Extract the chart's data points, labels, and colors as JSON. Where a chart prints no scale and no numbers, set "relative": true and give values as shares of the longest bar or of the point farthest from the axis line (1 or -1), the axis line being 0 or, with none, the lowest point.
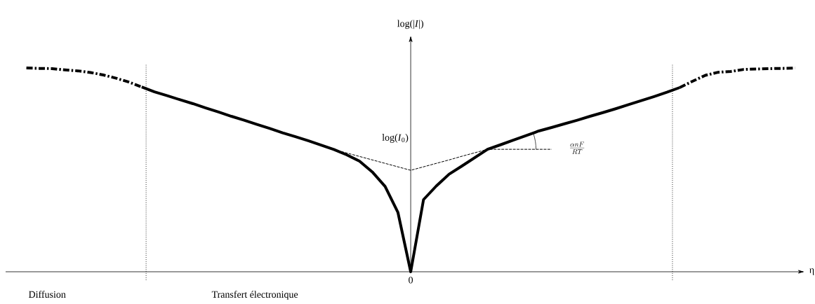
{
  "chart_data": {
    "type": "line",
    "relative": true,
    "ylabel": "log(|*I*|)",
    "xlabel": "η",
    "categories": [
      null,
      null,
      null,
      null,
      null,
      null,
      null,
      null,
      null,
      null,
      null,
      null,
      null,
      null,
      null,
      null,
      null,
      null,
      null,
      null,
      null,
      null,
      null,
      null,
      null,
      null,
      null,
      null,
      null,
      null,
      null,
      null,
      null,
      null,
      null,
      null,
      null,
      null,
      null,
      null,
      null,
      null,
      null,
      null,
      null,
      null,
      null,
      null,
      null,
      null,
      null,
      null,
      null,
      null,
      null,
      null,
      null,
      null,
      null,
      null,
      null
    ],
    "series": [
      {
        "color": "#000000",
        "line_style": "dashdot",
        "values": [
          1.0,
          0.998,
          0.997,
          0.991,
          0.986,
          0.978,
          0.966,
          0.95,
          0.931,
          0.907,
          null,
          null,
          null,
          null,
          null,
          null,
          null,
          null,
          null,
          null,
          null,
          null,
          null,
          null,
          null,
          null,
          null,
          null,
          null,
          null,
          null,
          null,
          null,
          null,
          null,
          null,
          null,
          null,
          null,
          null,
          null,
          null,
          null,
          null,
          null,
          null,
          null,
          null,
          null,
          null,
          null,
          null,
          null,
          null,
          null,
          null,
          null,
          null,
          null,
          null,
          null
        ]
      },
      {
        "color": "#000000",
        "line_style": "solid",
        "values": [
          null,
          null,
          null,
          null,
          null,
          null,
          null,
          null,
          null,
          0.907,
          0.883,
          0.864,
          0.844,
          0.825,
          0.804,
          0.784,
          0.763,
          0.744,
          0.723,
          0.703,
          0.682,
          0.663,
          0.643,
          0.622,
          0.6,
          0.574,
          0.543,
          0.49,
          0.419,
          0.292,
          0,
          0.354,
          0.421,
          0.479,
          0.519,
          0.56,
          0.601,
          0.623,
          0.646,
          0.668,
          0.691,
          0.708,
          0.726,
          0.744,
          0.763,
          0.781,
          0.8,
          0.82,
          0.84,
          0.86,
          0.881,
          0.904,
          null,
          null,
          null,
          null,
          null,
          null,
          null,
          null,
          null
        ]
      },
      {
        "color": "#000000",
        "line_style": "dashdot",
        "values": [
          null,
          null,
          null,
          null,
          null,
          null,
          null,
          null,
          null,
          null,
          null,
          null,
          null,
          null,
          null,
          null,
          null,
          null,
          null,
          null,
          null,
          null,
          null,
          null,
          null,
          null,
          null,
          null,
          null,
          null,
          null,
          null,
          null,
          null,
          null,
          null,
          null,
          null,
          null,
          null,
          null,
          null,
          null,
          null,
          null,
          null,
          null,
          null,
          null,
          null,
          null,
          0.904,
          0.935,
          0.964,
          0.979,
          0.983,
          0.993,
          0.995,
          0.997,
          0.998,
          1.0
        ]
      },
      {
        "color": "#000000",
        "line_style": "dashed",
        "values": [
          null,
          null,
          null,
          null,
          null,
          null,
          null,
          null,
          null,
          null,
          null,
          null,
          null,
          null,
          null,
          null,
          null,
          null,
          null,
          null,
          null,
          null,
          null,
          null,
          0.6,
          0.583,
          0.566,
          0.549,
          0.532,
          0.515,
          0.498,
          0.515,
          0.532,
          0.549,
          0.567,
          0.584,
          0.601,
          0.601,
          0.601,
          0.601,
          0.601,
          0.601,
          null,
          null,
          null,
          null,
          null,
          null,
          null,
          null,
          null,
          null,
          null,
          null,
          null,
          null,
          null,
          null,
          null,
          null,
          null
        ]
      }
    ],
    "annotations": [
      "log(*I*$_{0}$)",
      "Diffusion",
      "Transfert électronique",
      "\\frac{\\alpha nF}{RT}",
      "0"
    ],
    "marker": "none"
  }
}
